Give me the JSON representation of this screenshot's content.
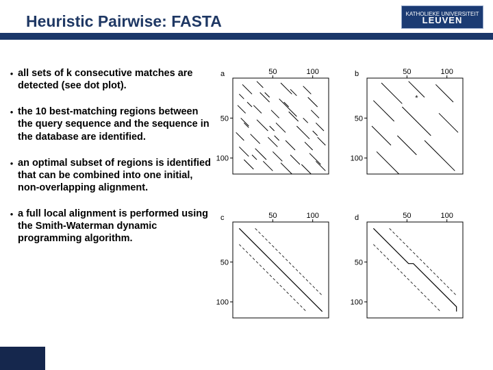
{
  "title": "Heuristic Pairwise: FASTA",
  "logo": {
    "top": "KATHOLIEKE UNIVERSITEIT",
    "main": "LEUVEN"
  },
  "colors": {
    "title": "#1f3864",
    "rule": "#1a3769",
    "logo_bg": "#1b3b73",
    "footer_bg": "#15274d",
    "text": "#000000",
    "axis": "#000000"
  },
  "bullets": [
    "all sets of k consecutive matches are detected (see dot plot).",
    "the 10 best-matching regions between the query sequence and the sequence in the database are identified.",
    "an optimal subset of regions is identified that can be combined into one initial, non-overlapping alignment.",
    "a full local alignment is performed using the Smith-Waterman dynamic programming algorithm."
  ],
  "figure": {
    "panel_labels": [
      "a",
      "b",
      "c",
      "d"
    ],
    "axis_ticks": [
      50,
      100
    ],
    "axis_range": [
      0,
      120
    ],
    "panels": {
      "a": {
        "segments": [
          [
            12,
            8,
            24,
            20
          ],
          [
            30,
            4,
            38,
            12
          ],
          [
            60,
            6,
            74,
            20
          ],
          [
            88,
            10,
            98,
            20
          ],
          [
            8,
            20,
            14,
            26
          ],
          [
            34,
            18,
            46,
            30
          ],
          [
            58,
            26,
            80,
            48
          ],
          [
            94,
            24,
            106,
            36
          ],
          [
            6,
            34,
            16,
            44
          ],
          [
            26,
            34,
            36,
            44
          ],
          [
            48,
            40,
            58,
            50
          ],
          [
            70,
            42,
            82,
            54
          ],
          [
            98,
            40,
            108,
            50
          ],
          [
            10,
            50,
            20,
            60
          ],
          [
            30,
            52,
            44,
            66
          ],
          [
            54,
            56,
            66,
            68
          ],
          [
            80,
            60,
            96,
            76
          ],
          [
            104,
            56,
            114,
            66
          ],
          [
            4,
            68,
            14,
            78
          ],
          [
            22,
            70,
            34,
            82
          ],
          [
            44,
            74,
            56,
            86
          ],
          [
            66,
            78,
            78,
            90
          ],
          [
            90,
            80,
            100,
            90
          ],
          [
            106,
            74,
            116,
            84
          ],
          [
            8,
            86,
            20,
            98
          ],
          [
            28,
            88,
            42,
            102
          ],
          [
            50,
            92,
            62,
            104
          ],
          [
            72,
            96,
            84,
            108
          ],
          [
            96,
            94,
            110,
            108
          ],
          [
            14,
            102,
            26,
            114
          ],
          [
            38,
            104,
            50,
            116
          ],
          [
            60,
            106,
            74,
            120
          ],
          [
            86,
            108,
            98,
            120
          ],
          [
            104,
            104,
            116,
            116
          ],
          [
            18,
            30,
            24,
            36
          ],
          [
            72,
            14,
            80,
            22
          ],
          [
            46,
            60,
            52,
            66
          ],
          [
            64,
            30,
            70,
            36
          ],
          [
            14,
            56,
            20,
            62
          ],
          [
            88,
            50,
            94,
            56
          ],
          [
            40,
            18,
            46,
            24
          ],
          [
            52,
            72,
            58,
            78
          ],
          [
            100,
            66,
            106,
            72
          ],
          [
            24,
            96,
            30,
            102
          ]
        ]
      },
      "b": {
        "segments": [
          [
            18,
            6,
            44,
            32
          ],
          [
            52,
            4,
            72,
            24
          ],
          [
            86,
            8,
            108,
            30
          ],
          [
            8,
            28,
            34,
            54
          ],
          [
            44,
            36,
            80,
            72
          ],
          [
            90,
            44,
            114,
            68
          ],
          [
            6,
            60,
            30,
            84
          ],
          [
            38,
            72,
            62,
            96
          ],
          [
            72,
            78,
            110,
            116
          ],
          [
            12,
            92,
            40,
            120
          ]
        ],
        "star": [
          62,
          28
        ]
      },
      "c": {
        "main": [
          [
            8,
            8
          ],
          [
            112,
            112
          ]
        ],
        "dashed": [
          [
            [
              8,
              28
            ],
            [
              92,
              112
            ]
          ],
          [
            [
              28,
              8
            ],
            [
              112,
              92
            ]
          ]
        ]
      },
      "d": {
        "main": [
          [
            8,
            8
          ],
          [
            52,
            52
          ],
          [
            58,
            52
          ],
          [
            112,
            106
          ],
          [
            112,
            112
          ]
        ],
        "dashed": [
          [
            [
              8,
              28
            ],
            [
              92,
              112
            ]
          ],
          [
            [
              28,
              8
            ],
            [
              112,
              92
            ]
          ]
        ]
      }
    }
  }
}
